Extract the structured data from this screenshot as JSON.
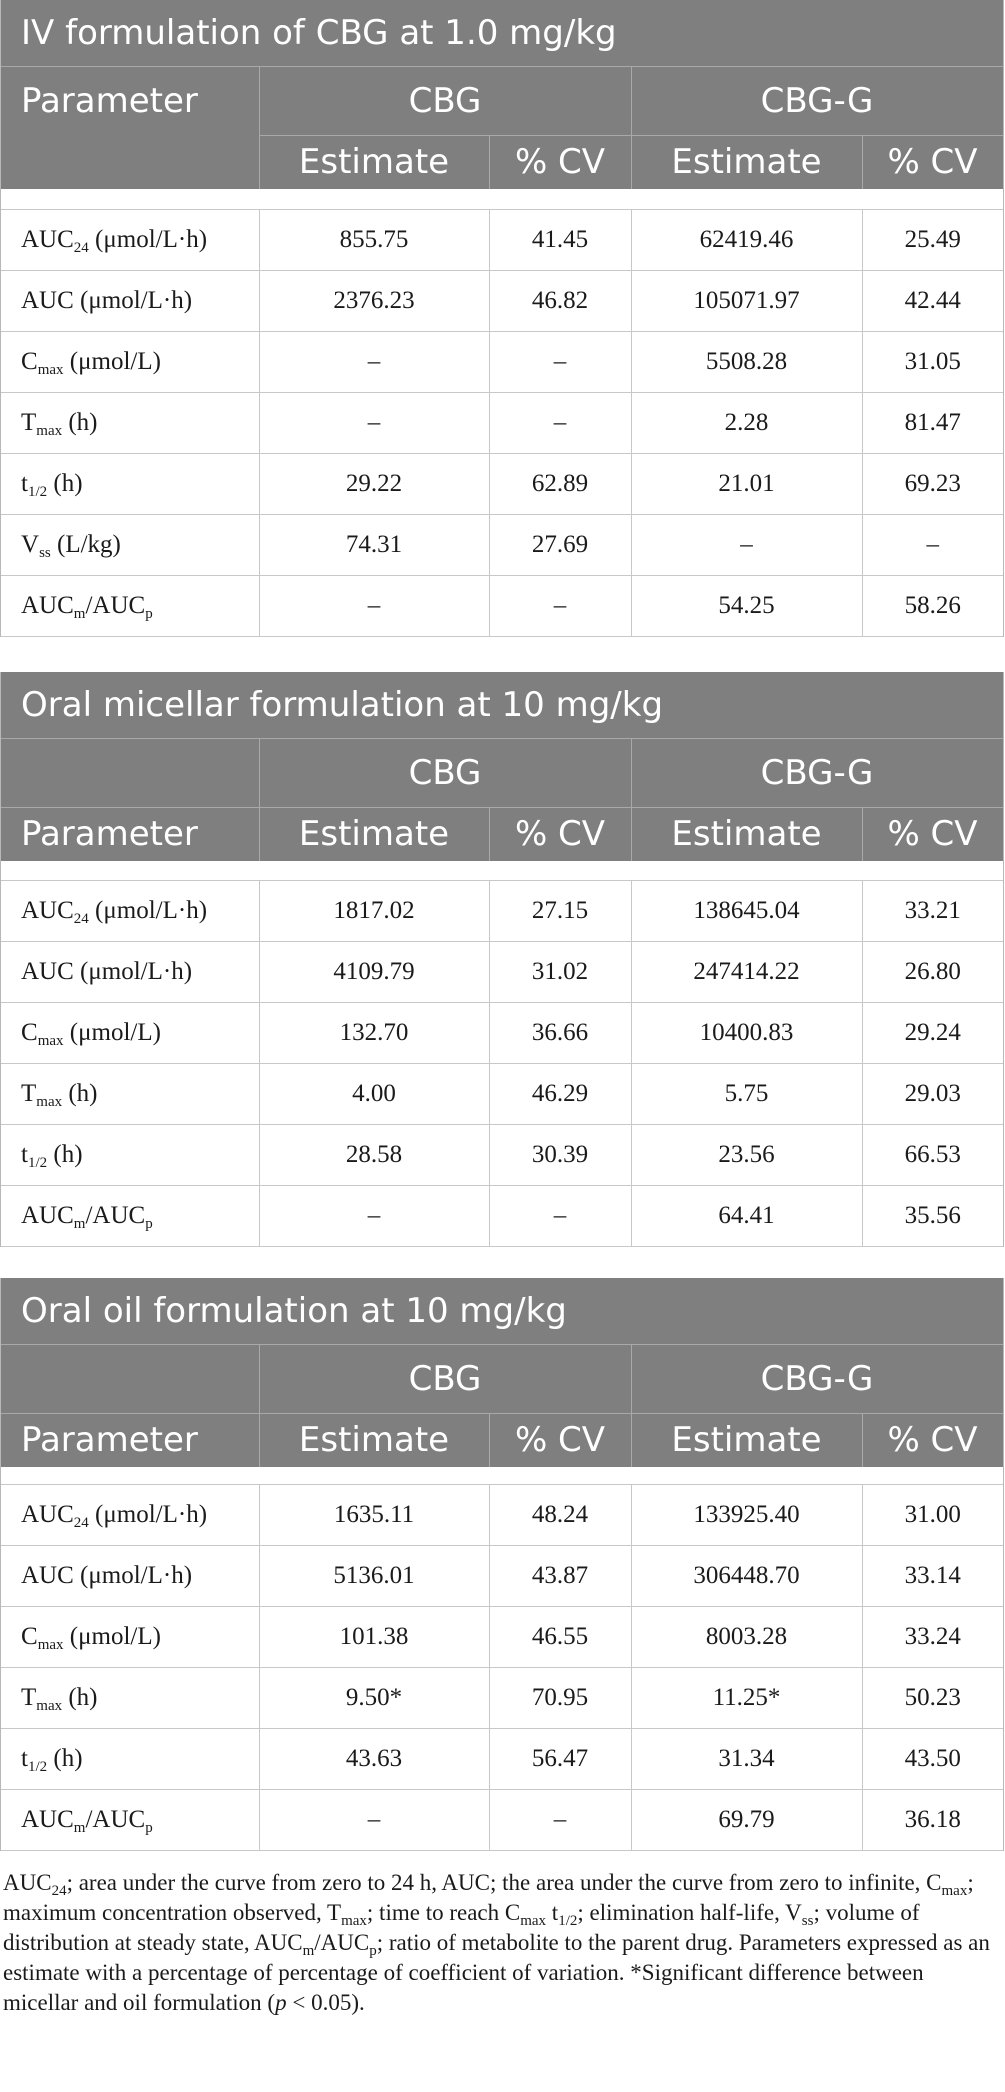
{
  "sections": [
    {
      "title": "IV formulation of CBG at 1.0 mg/kg",
      "header": {
        "parameter": "Parameter",
        "group1": "CBG",
        "group2": "CBG-G",
        "estimate": "Estimate",
        "cv": "% CV"
      },
      "rows": [
        {
          "name": "AUC",
          "sub": "24",
          "unit": " (μmol/L·h)",
          "v": [
            "855.75",
            "41.45",
            "62419.46",
            "25.49"
          ]
        },
        {
          "name": "AUC",
          "sub": "",
          "unit": " (μmol/L·h)",
          "v": [
            "2376.23",
            "46.82",
            "105071.97",
            "42.44"
          ]
        },
        {
          "name": "C",
          "sub": "max",
          "unit": " (μmol/L)",
          "v": [
            "–",
            "–",
            "5508.28",
            "31.05"
          ]
        },
        {
          "name": "T",
          "sub": "max",
          "unit": " (h)",
          "v": [
            "–",
            "–",
            "2.28",
            "81.47"
          ]
        },
        {
          "name": "t",
          "sub": "1/2",
          "unit": " (h)",
          "v": [
            "29.22",
            "62.89",
            "21.01",
            "69.23"
          ]
        },
        {
          "name": "V",
          "sub": "ss",
          "unit": " (L/kg)",
          "v": [
            "74.31",
            "27.69",
            "–",
            "–"
          ]
        },
        {
          "name": "AUC",
          "sub": "m",
          "unit": "/AUC",
          "sub2": "p",
          "v": [
            "–",
            "–",
            "54.25",
            "58.26"
          ]
        }
      ]
    },
    {
      "title": "Oral micellar formulation at 10 mg/kg",
      "header": {
        "parameter": "Parameter",
        "group1": "CBG",
        "group2": "CBG-G",
        "estimate": "Estimate",
        "cv": "% CV"
      },
      "rows": [
        {
          "name": "AUC",
          "sub": "24",
          "unit": " (μmol/L·h)",
          "v": [
            "1817.02",
            "27.15",
            "138645.04",
            "33.21"
          ]
        },
        {
          "name": "AUC",
          "sub": "",
          "unit": " (μmol/L·h)",
          "v": [
            "4109.79",
            "31.02",
            "247414.22",
            "26.80"
          ]
        },
        {
          "name": "C",
          "sub": "max",
          "unit": " (μmol/L)",
          "v": [
            "132.70",
            "36.66",
            "10400.83",
            "29.24"
          ]
        },
        {
          "name": "T",
          "sub": "max",
          "unit": " (h)",
          "v": [
            "4.00",
            "46.29",
            "5.75",
            "29.03"
          ]
        },
        {
          "name": "t",
          "sub": "1/2",
          "unit": " (h)",
          "v": [
            "28.58",
            "30.39",
            "23.56",
            "66.53"
          ]
        },
        {
          "name": "AUC",
          "sub": "m",
          "unit": "/AUC",
          "sub2": "p",
          "v": [
            "–",
            "–",
            "64.41",
            "35.56"
          ]
        }
      ]
    },
    {
      "title": "Oral oil formulation at 10 mg/kg",
      "header": {
        "parameter": "Parameter",
        "group1": "CBG",
        "group2": "CBG-G",
        "estimate": "Estimate",
        "cv": "% CV"
      },
      "rows": [
        {
          "name": "AUC",
          "sub": "24",
          "unit": " (μmol/L·h)",
          "v": [
            "1635.11",
            "48.24",
            "133925.40",
            "31.00"
          ]
        },
        {
          "name": "AUC",
          "sub": "",
          "unit": " (μmol/L·h)",
          "v": [
            "5136.01",
            "43.87",
            "306448.70",
            "33.14"
          ]
        },
        {
          "name": "C",
          "sub": "max",
          "unit": " (μmol/L)",
          "v": [
            "101.38",
            "46.55",
            "8003.28",
            "33.24"
          ]
        },
        {
          "name": "T",
          "sub": "max",
          "unit": " (h)",
          "v": [
            "9.50*",
            "70.95",
            "11.25*",
            "50.23"
          ]
        },
        {
          "name": "t",
          "sub": "1/2",
          "unit": " (h)",
          "v": [
            "43.63",
            "56.47",
            "31.34",
            "43.50"
          ]
        },
        {
          "name": "AUC",
          "sub": "m",
          "unit": "/AUC",
          "sub2": "p",
          "v": [
            "–",
            "–",
            "69.79",
            "36.18"
          ]
        }
      ]
    }
  ],
  "footnote": [
    {
      "t": "AUC"
    },
    {
      "s": "24"
    },
    {
      "t": "; area under the curve from zero to 24 h, AUC; the area under the curve from zero to infinite, C"
    },
    {
      "s": "max"
    },
    {
      "t": "; maximum concentration observed, T"
    },
    {
      "s": "max"
    },
    {
      "t": "; time to reach C"
    },
    {
      "s": "max"
    },
    {
      "t": " t"
    },
    {
      "s": "1/2"
    },
    {
      "t": "; elimination half-life, V"
    },
    {
      "s": "ss"
    },
    {
      "t": "; volume of distribution at steady state, AUC"
    },
    {
      "s": "m"
    },
    {
      "t": "/AUC"
    },
    {
      "s": "p"
    },
    {
      "t": "; ratio of metabolite to the parent drug. Parameters expressed as an estimate with a percentage of percentage of coefficient of variation. *Significant difference between micellar and oil formulation ("
    },
    {
      "i": "p"
    },
    {
      "t": " < 0.05)."
    }
  ]
}
